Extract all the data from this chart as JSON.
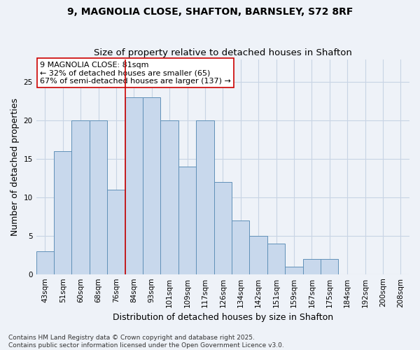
{
  "title_line1": "9, MAGNOLIA CLOSE, SHAFTON, BARNSLEY, S72 8RF",
  "title_line2": "Size of property relative to detached houses in Shafton",
  "xlabel": "Distribution of detached houses by size in Shafton",
  "ylabel": "Number of detached properties",
  "footer_line1": "Contains HM Land Registry data © Crown copyright and database right 2025.",
  "footer_line2": "Contains public sector information licensed under the Open Government Licence v3.0.",
  "categories": [
    "43sqm",
    "51sqm",
    "60sqm",
    "68sqm",
    "76sqm",
    "84sqm",
    "93sqm",
    "101sqm",
    "109sqm",
    "117sqm",
    "126sqm",
    "134sqm",
    "142sqm",
    "151sqm",
    "159sqm",
    "167sqm",
    "175sqm",
    "184sqm",
    "192sqm",
    "200sqm",
    "208sqm"
  ],
  "values": [
    3,
    16,
    20,
    20,
    11,
    23,
    23,
    20,
    14,
    20,
    12,
    7,
    5,
    4,
    1,
    2,
    2,
    0,
    0,
    0,
    0
  ],
  "bar_color": "#c8d8ec",
  "bar_edge_color": "#6090b8",
  "grid_color": "#c8d4e4",
  "background_color": "#eef2f8",
  "vline_x": 4.5,
  "vline_color": "#cc0000",
  "annotation_text": "9 MAGNOLIA CLOSE: 81sqm\n← 32% of detached houses are smaller (65)\n67% of semi-detached houses are larger (137) →",
  "annotation_box_color": "#ffffff",
  "annotation_box_edge": "#cc0000",
  "ylim": [
    0,
    28
  ],
  "yticks": [
    0,
    5,
    10,
    15,
    20,
    25
  ],
  "title_fontsize": 10,
  "subtitle_fontsize": 9.5,
  "tick_fontsize": 7.5,
  "label_fontsize": 9,
  "footer_fontsize": 6.5,
  "annotation_fontsize": 8
}
